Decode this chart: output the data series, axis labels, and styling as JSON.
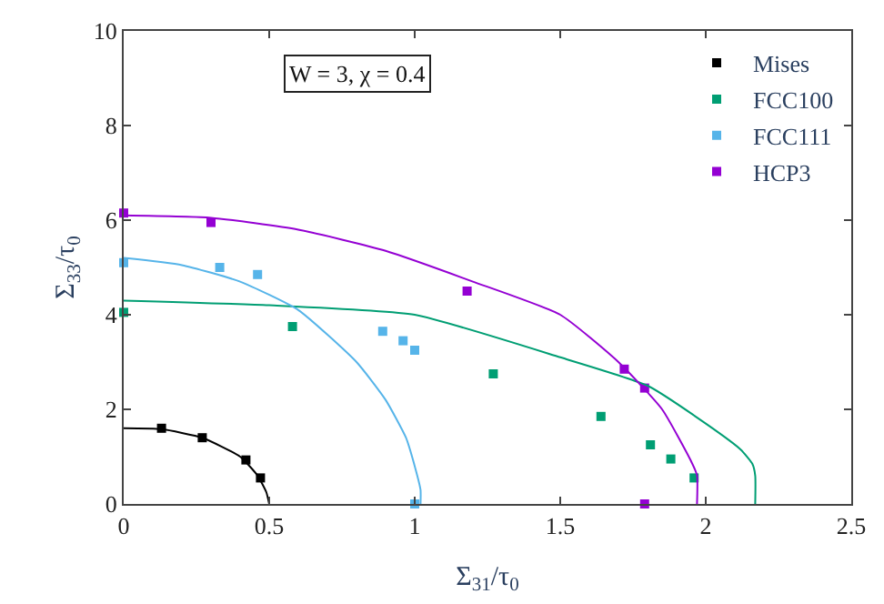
{
  "chart_data": {
    "type": "scatter",
    "xlabel": "Σ$_{31}$/τ$_{0}$",
    "ylabel": "Σ$_{33}$/τ$_{0}$",
    "annotations": [
      "W = 3, χ = 0.4"
    ],
    "xlim": [
      0,
      2.5
    ],
    "xticks": [
      0,
      0.5,
      1,
      1.5,
      2,
      2.5
    ],
    "ylim": [
      0,
      10
    ],
    "yticks": [
      0,
      2,
      4,
      6,
      8,
      10
    ],
    "legend": "top right",
    "series": [
      {
        "name": "Mises",
        "color": "#000000",
        "marker": "square",
        "x": [
          0.13,
          0.27,
          0.42,
          0.47
        ],
        "values": [
          1.6,
          1.4,
          0.93,
          0.55
        ]
      },
      {
        "name": "FCC100",
        "color": "#009e73",
        "marker": "square",
        "x": [
          0,
          0.58,
          1.27,
          1.64,
          1.81,
          1.88,
          1.96
        ],
        "values": [
          4.05,
          3.75,
          2.75,
          1.85,
          1.25,
          0.95,
          0.55
        ]
      },
      {
        "name": "FCC111",
        "color": "#56b4e9",
        "marker": "square",
        "x": [
          0,
          0.33,
          0.46,
          0.89,
          0.96,
          1.0,
          1.0
        ],
        "values": [
          5.1,
          5.0,
          4.85,
          3.65,
          3.45,
          3.25,
          0
        ]
      },
      {
        "name": "HCP3",
        "color": "#9400d3",
        "marker": "square",
        "x": [
          0,
          0.3,
          1.18,
          1.72,
          1.79,
          1.79
        ],
        "values": [
          6.15,
          5.95,
          4.5,
          2.85,
          2.45,
          0
        ]
      },
      {
        "type": "line",
        "marker": "none",
        "color": "#000000",
        "x": [
          0,
          0.13,
          0.27,
          0.4,
          0.46,
          0.49,
          0.5
        ],
        "values": [
          1.6,
          1.58,
          1.4,
          1.0,
          0.6,
          0.25,
          0
        ]
      },
      {
        "type": "line",
        "marker": "none",
        "color": "#009e73",
        "x": [
          0,
          0.5,
          1.0,
          1.5,
          1.8,
          2.0,
          2.12,
          2.16,
          2.17,
          2.17
        ],
        "values": [
          4.3,
          4.2,
          4.0,
          3.1,
          2.5,
          1.7,
          1.15,
          0.85,
          0.6,
          0
        ]
      },
      {
        "type": "line",
        "marker": "none",
        "color": "#56b4e9",
        "x": [
          0,
          0.2,
          0.4,
          0.6,
          0.8,
          0.9,
          0.97,
          1.0,
          1.02,
          1.02
        ],
        "values": [
          5.2,
          5.05,
          4.7,
          4.1,
          3.0,
          2.2,
          1.4,
          0.8,
          0.3,
          0
        ]
      },
      {
        "type": "line",
        "marker": "none",
        "color": "#9400d3",
        "x": [
          0,
          0.3,
          0.6,
          0.9,
          1.2,
          1.5,
          1.7,
          1.85,
          1.95,
          1.97,
          1.97
        ],
        "values": [
          6.1,
          6.05,
          5.8,
          5.35,
          4.7,
          4.0,
          3.0,
          2.0,
          0.9,
          0.6,
          0
        ]
      }
    ]
  }
}
